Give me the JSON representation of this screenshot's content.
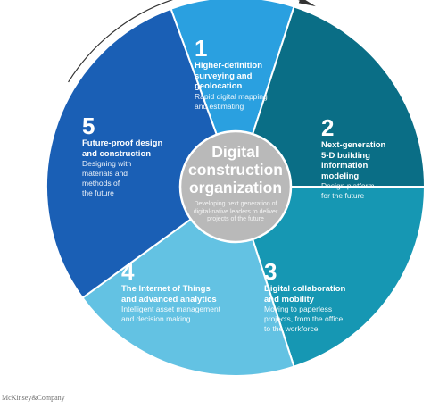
{
  "colors": {
    "segment_1": "#2aa0e0",
    "segment_2": "#0a6e86",
    "segment_3": "#1697b3",
    "segment_4": "#63c2e3",
    "segment_5": "#1a5fb5",
    "center": "#b9b9b9",
    "arrow": "#333333"
  },
  "center": {
    "title": "Digital\nconstruction\norganization",
    "description": "Developing next generation of\ndigital-native leaders to deliver\nprojects of the future"
  },
  "segments": [
    {
      "number": "1",
      "title": "Higher-definition\nsurveying and\ngeolocation",
      "description": "Rapid digital mapping\nand estimating"
    },
    {
      "number": "2",
      "title": "Next-generation\n5-D building\ninformation\nmodeling",
      "description": "Design platform\nfor the future"
    },
    {
      "number": "3",
      "title": "Digital collaboration\nand mobility",
      "description": "Moving to paperless\nprojects, from the office\nto the workforce"
    },
    {
      "number": "4",
      "title": "The Internet of Things\nand advanced analytics",
      "description": "Intelligent asset management\nand decision making"
    },
    {
      "number": "5",
      "title": "Future-proof design\nand construction",
      "description": "Designing with\nmaterials and\nmethods of\nthe future"
    }
  ],
  "footer": {
    "brand": "McKinsey&Company"
  }
}
